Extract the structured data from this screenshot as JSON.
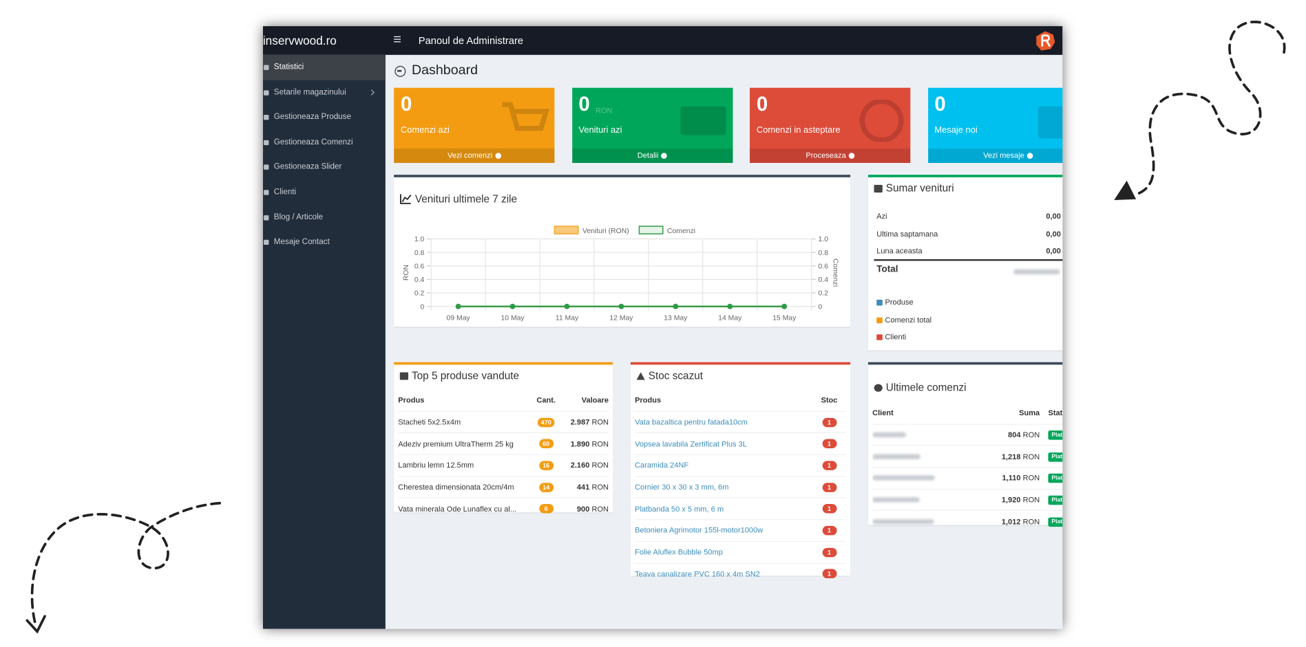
{
  "header": {
    "brand": "inservwood.ro",
    "title": "Panoul de Administrare"
  },
  "sidebar": {
    "items": [
      "Statistici",
      "Setarile magazinului",
      "Gestioneaza Produse",
      "Gestioneaza Comenzi",
      "Gestioneaza Slider",
      "Clienti",
      "Blog / Articole",
      "Mesaje Contact"
    ]
  },
  "page_title": "Dashboard",
  "tiles": [
    {
      "value": 0,
      "label": "Comenzi azi",
      "link": "Vezi comenzi",
      "color": "#f39c12"
    },
    {
      "value": 0,
      "unit": "RON",
      "label": "Venituri azi",
      "link": "Detalii",
      "color": "#00a65a"
    },
    {
      "value": 0,
      "label": "Comenzi in asteptare",
      "link": "Proceseaza",
      "color": "#dd4b39"
    },
    {
      "value": 0,
      "label": "Mesaje noi",
      "link": "Vezi mesaje",
      "color": "#00c0ef"
    }
  ],
  "revenue_chart": {
    "type": "line",
    "title": "Venituri ultimele 7 zile",
    "categories": [
      "09 May",
      "10 May",
      "11 May",
      "12 May",
      "13 May",
      "14 May",
      "15 May"
    ],
    "series": [
      {
        "name": "Venituri (RON)",
        "color": "#f5a623",
        "values": [
          0,
          0,
          0,
          0,
          0,
          0,
          0
        ]
      },
      {
        "name": "Comenzi",
        "color": "#2e9a48",
        "axis": "y2",
        "values": [
          0,
          0,
          0,
          0,
          0,
          0,
          0
        ]
      }
    ],
    "ylabel": "RON",
    "y2label": "Comenzi",
    "ylim": [
      0,
      1
    ],
    "yticks": [
      0,
      0.2,
      0.4,
      0.6,
      0.8,
      {
        "value": 1,
        "label": "1.0"
      }
    ],
    "y2lim": [
      0,
      1
    ],
    "y2ticks": [
      0,
      0.2,
      0.4,
      0.6,
      0.8,
      {
        "value": 1,
        "label": "1.0"
      }
    ],
    "grid": true
  },
  "summary": {
    "title": "Sumar venituri",
    "rows": [
      {
        "label": "Azi",
        "value": "0,00"
      },
      {
        "label": "Ultima saptamana",
        "value": "0,00"
      },
      {
        "label": "Luna aceasta",
        "value": "0,00"
      }
    ],
    "total_label": "Total",
    "links": [
      "Produse",
      "Comenzi total",
      "Clienti"
    ]
  },
  "top_products": {
    "title": "Top 5 produse vandute",
    "columns": [
      "Produs",
      "Cant.",
      "Valoare"
    ],
    "rows": [
      {
        "name": "Stacheti 5x2.5x4m",
        "qty": "470",
        "value": "2.987",
        "currency": "RON"
      },
      {
        "name": "Adeziv premium UltraTherm 25 kg",
        "qty": "60",
        "value": "1.890",
        "currency": "RON"
      },
      {
        "name": "Lambriu lemn 12.5mm",
        "qty": "16",
        "value": "2.160",
        "currency": "RON"
      },
      {
        "name": "Cherestea dimensionata 20cm/4m",
        "qty": "14",
        "value": "441",
        "currency": "RON"
      },
      {
        "name": "Vata minerala Ode Lunaflex cu al...",
        "qty": "6",
        "value": "900",
        "currency": "RON"
      }
    ]
  },
  "low_stock": {
    "title": "Stoc scazut",
    "columns": [
      "Produs",
      "Stoc"
    ],
    "rows": [
      {
        "name": "Vata bazaltica pentru fatada10cm",
        "stock": "1"
      },
      {
        "name": "Vopsea lavabila Zertificat Plus 3L",
        "stock": "1"
      },
      {
        "name": "Caramida 24NF",
        "stock": "1"
      },
      {
        "name": "Cornier 30 x 30 x 3 mm, 6m",
        "stock": "1"
      },
      {
        "name": "Platbanda 50 x 5 mm, 6 m",
        "stock": "1"
      },
      {
        "name": "Betoniera Agrimotor 155l-motor1000w",
        "stock": "1"
      },
      {
        "name": "Folie Aluflex Bubble 50mp",
        "stock": "1"
      },
      {
        "name": "Teava canalizare PVC 160 x 4m SN2",
        "stock": "1"
      }
    ]
  },
  "latest_orders": {
    "title": "Ultimele comenzi",
    "columns": [
      "Client",
      "Suma",
      "Statu"
    ],
    "rows": [
      {
        "amount": "804",
        "currency": "RON",
        "status": "Platit"
      },
      {
        "amount": "1,218",
        "currency": "RON",
        "status": "Platit"
      },
      {
        "amount": "1,110",
        "currency": "RON",
        "status": "Platit"
      },
      {
        "amount": "1,920",
        "currency": "RON",
        "status": "Platit"
      },
      {
        "amount": "1,012",
        "currency": "RON",
        "status": "Platit"
      }
    ]
  }
}
